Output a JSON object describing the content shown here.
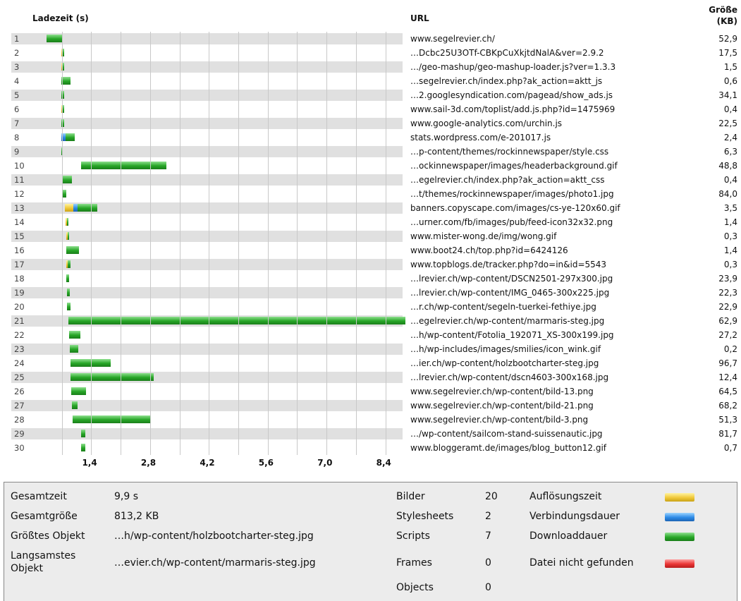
{
  "header": {
    "time_label": "Ladezeit (s)",
    "url_label": "URL",
    "size_label_1": "Größe",
    "size_label_2": "(KB)"
  },
  "axis": {
    "ticks": [
      "1,4",
      "2,8",
      "4,2",
      "5,6",
      "7,0",
      "8,4"
    ]
  },
  "chart_data": {
    "type": "bar",
    "xlabel": "Ladezeit (s)",
    "xticks": [
      1.4,
      2.8,
      4.2,
      5.6,
      7.0,
      8.4
    ],
    "legend": [
      "Auflösungszeit",
      "Verbindungsdauer",
      "Downloaddauer",
      "Datei nicht gefunden"
    ],
    "series_colors": {
      "Auflösungszeit": "#f0c838",
      "Verbindungsdauer": "#2c8ae6",
      "Downloaddauer": "#27a627",
      "Datei nicht gefunden": "#ea3535"
    },
    "rows": [
      {
        "n": "1",
        "url": "www.segelrevier.ch/",
        "size": "52,9",
        "start": 0.33,
        "dns": 0,
        "conn": 0,
        "dl": 0.37
      },
      {
        "n": "2",
        "url": "…Dcbc25U3OTf-CBKpCuXkjtdNalA&ver=2.9.2",
        "size": "17,5",
        "start": 0.68,
        "dns": 0.02,
        "conn": 0,
        "dl": 0.03
      },
      {
        "n": "3",
        "url": "…/geo-mashup/geo-mashup-loader.js?ver=1.3.3",
        "size": "1,5",
        "start": 0.68,
        "dns": 0.03,
        "conn": 0,
        "dl": 0.02
      },
      {
        "n": "4",
        "url": "…segelrevier.ch/index.php?ak_action=aktt_js",
        "size": "0,6",
        "start": 0.68,
        "dns": 0,
        "conn": 0,
        "dl": 0.22
      },
      {
        "n": "5",
        "url": "…2.googlesyndication.com/pagead/show_ads.js",
        "size": "34,1",
        "start": 0.69,
        "dns": 0,
        "conn": 0,
        "dl": 0.07
      },
      {
        "n": "6",
        "url": "www.sail-3d.com/toplist/add.js.php?id=1475969",
        "size": "0,4",
        "start": 0.69,
        "dns": 0.02,
        "conn": 0,
        "dl": 0.02
      },
      {
        "n": "7",
        "url": "www.google-analytics.com/urchin.js",
        "size": "22,5",
        "start": 0.69,
        "dns": 0,
        "conn": 0,
        "dl": 0.06
      },
      {
        "n": "8",
        "url": "stats.wordpress.com/e-201017.js",
        "size": "2,4",
        "start": 0.69,
        "dns": 0,
        "conn": 0.1,
        "dl": 0.22
      },
      {
        "n": "9",
        "url": "…p-content/themes/rockinnewspaper/style.css",
        "size": "6,3",
        "start": 0.69,
        "dns": 0,
        "conn": 0,
        "dl": 0.04
      },
      {
        "n": "10",
        "url": "…ockinnewspaper/images/headerbackground.gif",
        "size": "48,8",
        "start": 1.15,
        "dns": 0,
        "conn": 0,
        "dl": 2.03
      },
      {
        "n": "11",
        "url": "…egelrevier.ch/index.php?ak_action=aktt_css",
        "size": "0,4",
        "start": 0.7,
        "dns": 0,
        "conn": 0,
        "dl": 0.24
      },
      {
        "n": "12",
        "url": "…t/themes/rockinnewspaper/images/photo1.jpg",
        "size": "84,0",
        "start": 0.7,
        "dns": 0,
        "conn": 0,
        "dl": 0.11
      },
      {
        "n": "13",
        "url": "banners.copyscape.com/images/cs-ye-120x60.gif",
        "size": "3,5",
        "start": 0.78,
        "dns": 0.2,
        "conn": 0.1,
        "dl": 0.47
      },
      {
        "n": "14",
        "url": "…urner.com/fb/images/pub/feed-icon32x32.png",
        "size": "1,4",
        "start": 0.79,
        "dns": 0.01,
        "conn": 0,
        "dl": 0.03
      },
      {
        "n": "15",
        "url": "www.mister-wong.de/img/wong.gif",
        "size": "0,3",
        "start": 0.8,
        "dns": 0.02,
        "conn": 0,
        "dl": 0.01
      },
      {
        "n": "16",
        "url": "www.boot24.ch/top.php?id=6424126",
        "size": "1,4",
        "start": 0.8,
        "dns": 0,
        "conn": 0,
        "dl": 0.3
      },
      {
        "n": "17",
        "url": "www.topblogs.de/tracker.php?do=in&id=5543",
        "size": "0,3",
        "start": 0.81,
        "dns": 0.01,
        "conn": 0,
        "dl": 0.06
      },
      {
        "n": "18",
        "url": "…lrevier.ch/wp-content/DSCN2501-297x300.jpg",
        "size": "23,9",
        "start": 0.81,
        "dns": 0,
        "conn": 0,
        "dl": 0.06
      },
      {
        "n": "19",
        "url": "…lrevier.ch/wp-content/IMG_0465-300x225.jpg",
        "size": "22,3",
        "start": 0.82,
        "dns": 0,
        "conn": 0,
        "dl": 0.07
      },
      {
        "n": "20",
        "url": "…r.ch/wp-content/segeln-tuerkei-fethiye.jpg",
        "size": "22,9",
        "start": 0.83,
        "dns": 0,
        "conn": 0,
        "dl": 0.08
      },
      {
        "n": "21",
        "url": "…egelrevier.ch/wp-content/marmaris-steg.jpg",
        "size": "62,9",
        "start": 0.85,
        "dns": 0,
        "conn": 0,
        "dl": 8.03
      },
      {
        "n": "22",
        "url": "…h/wp-content/Fotolia_192071_XS-300x199.jpg",
        "size": "27,2",
        "start": 0.88,
        "dns": 0,
        "conn": 0,
        "dl": 0.26
      },
      {
        "n": "23",
        "url": "…h/wp-includes/images/smilies/icon_wink.gif",
        "size": "0,2",
        "start": 0.89,
        "dns": 0,
        "conn": 0,
        "dl": 0.2
      },
      {
        "n": "24",
        "url": "…ier.ch/wp-content/holzbootcharter-steg.jpg",
        "size": "96,7",
        "start": 0.9,
        "dns": 0,
        "conn": 0,
        "dl": 0.97
      },
      {
        "n": "25",
        "url": "…lrevier.ch/wp-content/dscn4603-300x168.jpg",
        "size": "12,4",
        "start": 0.9,
        "dns": 0,
        "conn": 0,
        "dl": 1.98
      },
      {
        "n": "26",
        "url": "www.segelrevier.ch/wp-content/bild-13.png",
        "size": "64,5",
        "start": 0.92,
        "dns": 0,
        "conn": 0,
        "dl": 0.35
      },
      {
        "n": "27",
        "url": "www.segelrevier.ch/wp-content/bild-21.png",
        "size": "68,2",
        "start": 0.94,
        "dns": 0,
        "conn": 0,
        "dl": 0.14
      },
      {
        "n": "28",
        "url": "www.segelrevier.ch/wp-content/bild-3.png",
        "size": "51,3",
        "start": 0.96,
        "dns": 0,
        "conn": 0,
        "dl": 1.84
      },
      {
        "n": "29",
        "url": "…/wp-content/sailcom-stand-suissenautic.jpg",
        "size": "81,7",
        "start": 1.15,
        "dns": 0,
        "conn": 0,
        "dl": 0.11
      },
      {
        "n": "30",
        "url": "www.bloggeramt.de/images/blog_button12.gif",
        "size": "0,7",
        "start": 1.15,
        "dns": 0,
        "conn": 0,
        "dl": 0.11
      }
    ]
  },
  "summary": {
    "rows": [
      {
        "label": "Gesamtzeit",
        "value": "9,9 s"
      },
      {
        "label": "Gesamtgröße",
        "value": "813,2 KB"
      },
      {
        "label": "Größtes Objekt",
        "value": "…h/wp-content/holzbootcharter-steg.jpg"
      },
      {
        "label": "Langsamstes Objekt",
        "value": "…evier.ch/wp-content/marmaris-steg.jpg"
      }
    ],
    "counts": [
      {
        "label": "Bilder",
        "value": "20"
      },
      {
        "label": "Stylesheets",
        "value": "2"
      },
      {
        "label": "Scripts",
        "value": "7"
      },
      {
        "label": "Frames",
        "value": "0"
      },
      {
        "label": "Objects",
        "value": "0"
      }
    ],
    "legend": [
      {
        "label": "Auflösungszeit",
        "color": "#f0c838"
      },
      {
        "label": "Verbindungsdauer",
        "color": "#2c8ae6"
      },
      {
        "label": "Downloaddauer",
        "color": "#27a627"
      },
      {
        "label": "Datei nicht gefunden",
        "color": "#ea3535"
      }
    ]
  }
}
